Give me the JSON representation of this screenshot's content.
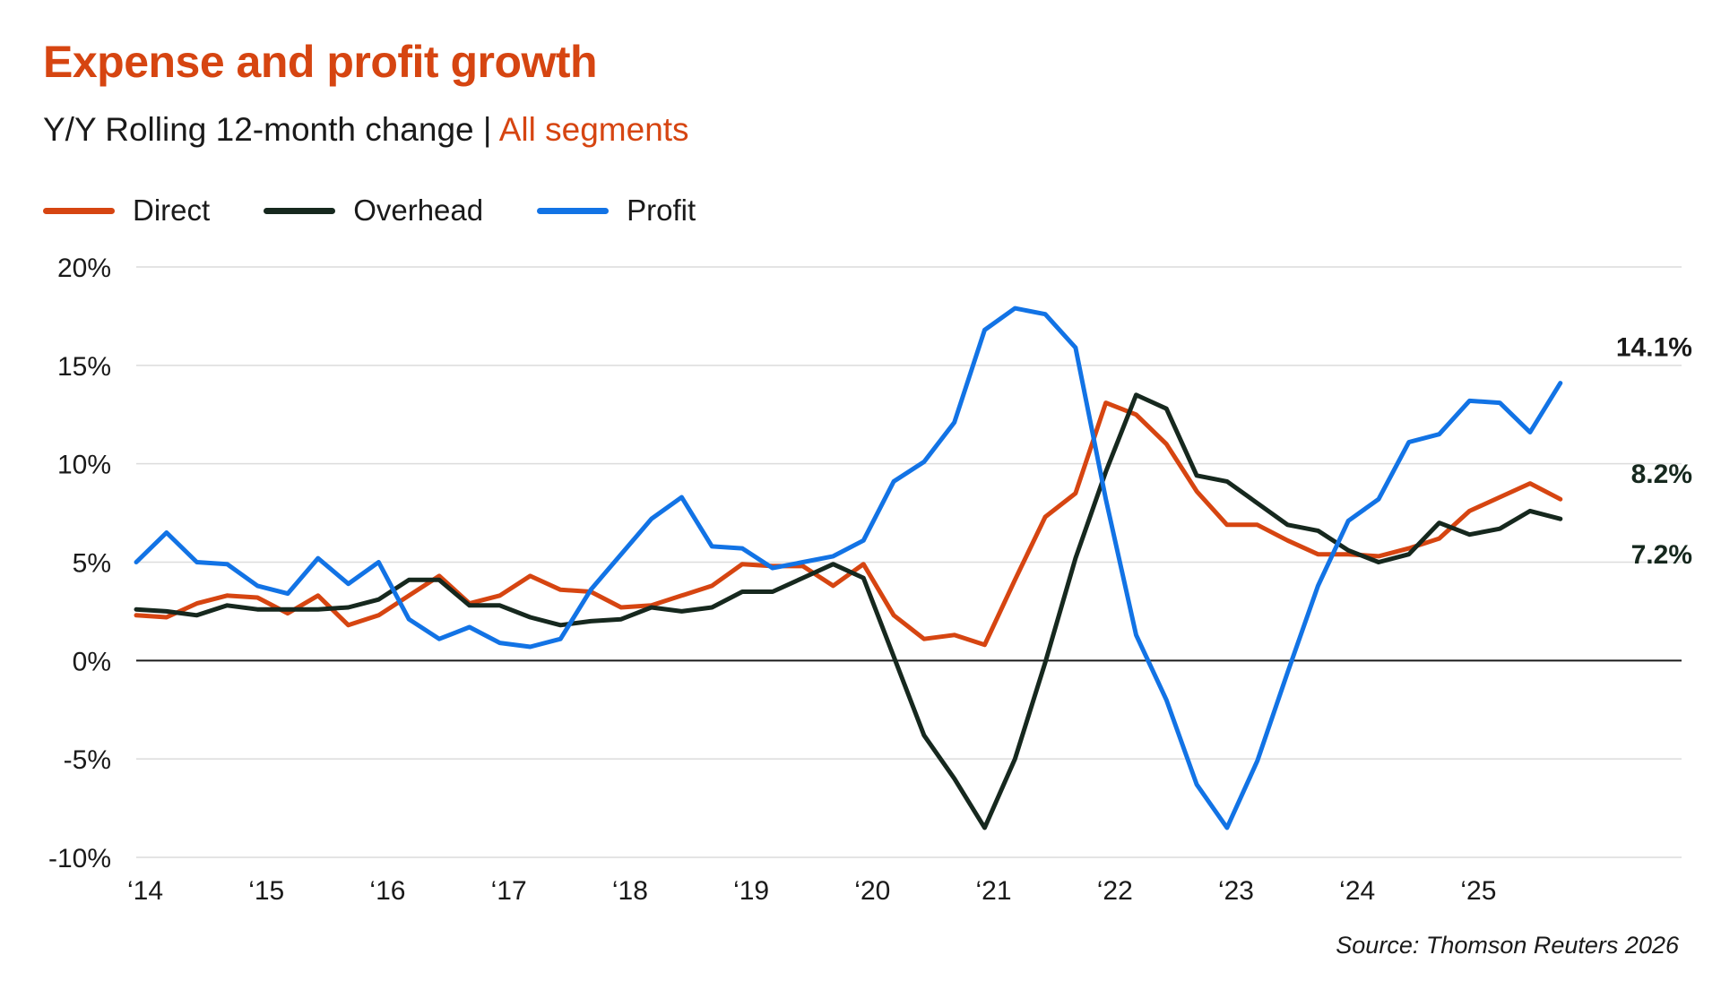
{
  "chart_data": {
    "type": "line",
    "title": "Expense and profit growth",
    "subtitle_main": "Y/Y Rolling 12-month change | ",
    "subtitle_accent": "All segments",
    "source": "Source: Thomson Reuters 2026",
    "xlabel": "",
    "ylabel": "",
    "x_tick_labels": [
      "‘14",
      "‘15",
      "‘16",
      "‘17",
      "‘18",
      "‘19",
      "‘20",
      "‘21",
      "‘22",
      "‘23",
      "‘24",
      "‘25"
    ],
    "y_tick_labels": [
      "20%",
      "15%",
      "10%",
      "5%",
      "0%",
      "-5%",
      "-10%"
    ],
    "y_ticks": [
      20,
      15,
      10,
      5,
      0,
      -5,
      -10
    ],
    "ylim": [
      -10,
      20
    ],
    "xlim": [
      2014.0,
      2026.75
    ],
    "grid": true,
    "legend_position": "top-left",
    "end_labels": [
      "14.1%",
      "8.2%",
      "7.2%"
    ],
    "series": [
      {
        "name": "Direct",
        "color": "#d64511",
        "values": [
          2.3,
          2.2,
          2.9,
          3.3,
          3.2,
          2.4,
          3.3,
          1.8,
          2.3,
          3.3,
          4.3,
          2.9,
          3.3,
          4.3,
          3.6,
          3.5,
          2.7,
          2.8,
          3.3,
          3.8,
          4.9,
          4.8,
          4.8,
          3.8,
          4.9,
          2.3,
          1.1,
          1.3,
          0.8,
          4.1,
          7.3,
          8.5,
          13.1,
          12.5,
          11.0,
          8.6,
          6.9,
          6.9,
          6.1,
          5.4,
          5.4,
          5.3,
          5.7,
          6.2,
          7.6,
          8.3,
          9.0,
          8.2
        ]
      },
      {
        "name": "Overhead",
        "color": "#16281e",
        "values": [
          2.6,
          2.5,
          2.3,
          2.8,
          2.6,
          2.6,
          2.6,
          2.7,
          3.1,
          4.1,
          4.1,
          2.8,
          2.8,
          2.2,
          1.8,
          2.0,
          2.1,
          2.7,
          2.5,
          2.7,
          3.5,
          3.5,
          4.2,
          4.9,
          4.2,
          0.2,
          -3.8,
          -6.0,
          -8.5,
          -5.0,
          -0.1,
          5.2,
          9.6,
          13.5,
          12.8,
          9.4,
          9.1,
          8.0,
          6.9,
          6.6,
          5.6,
          5.0,
          5.4,
          7.0,
          6.4,
          6.7,
          7.6,
          7.2
        ]
      },
      {
        "name": "Profit",
        "color": "#1273e5",
        "values": [
          5.0,
          6.5,
          5.0,
          4.9,
          3.8,
          3.4,
          5.2,
          3.9,
          5.0,
          2.1,
          1.1,
          1.7,
          0.9,
          0.7,
          1.1,
          3.6,
          5.4,
          7.2,
          8.3,
          5.8,
          5.7,
          4.7,
          5.0,
          5.3,
          6.1,
          9.1,
          10.1,
          12.1,
          16.8,
          17.9,
          17.6,
          15.9,
          8.2,
          1.3,
          -2.0,
          -6.3,
          -8.5,
          -5.1,
          -0.6,
          3.8,
          7.1,
          8.2,
          11.1,
          11.5,
          13.2,
          13.1,
          11.6,
          14.1
        ]
      }
    ]
  }
}
